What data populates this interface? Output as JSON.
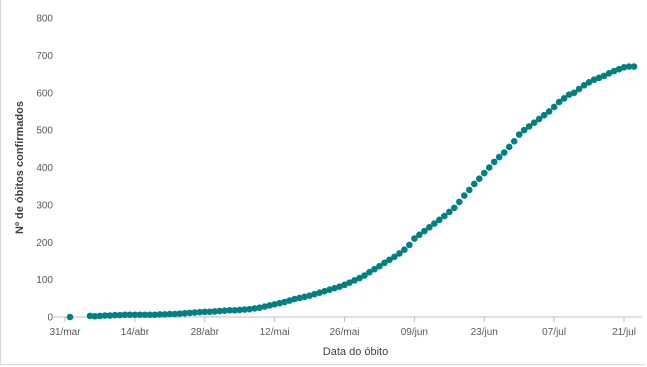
{
  "chart_data": {
    "type": "scatter",
    "title": "",
    "xlabel": "Data do óbito",
    "ylabel": "Nº de óbitos confirmados",
    "x_start": "2020-03-31",
    "x_end": "2020-07-23",
    "xticks": [
      {
        "label": "31/mar",
        "date": "2020-03-31"
      },
      {
        "label": "14/abr",
        "date": "2020-04-14"
      },
      {
        "label": "28/abr",
        "date": "2020-04-28"
      },
      {
        "label": "12/mai",
        "date": "2020-05-12"
      },
      {
        "label": "26/mai",
        "date": "2020-05-26"
      },
      {
        "label": "09/jun",
        "date": "2020-06-09"
      },
      {
        "label": "23/jun",
        "date": "2020-06-23"
      },
      {
        "label": "07/jul",
        "date": "2020-07-07"
      },
      {
        "label": "21/jul",
        "date": "2020-07-21"
      }
    ],
    "yticks": [
      "0",
      "100",
      "200",
      "300",
      "400",
      "500",
      "600",
      "700",
      "800"
    ],
    "ylim": [
      0,
      800
    ],
    "grid": false,
    "marker_color": "#008080",
    "series": [
      {
        "points": [
          [
            "2020-04-01",
            0
          ],
          [
            "2020-04-05",
            3
          ],
          [
            "2020-04-06",
            2
          ],
          [
            "2020-04-07",
            3
          ],
          [
            "2020-04-08",
            4
          ],
          [
            "2020-04-09",
            4
          ],
          [
            "2020-04-10",
            5
          ],
          [
            "2020-04-11",
            5
          ],
          [
            "2020-04-12",
            6
          ],
          [
            "2020-04-13",
            6
          ],
          [
            "2020-04-14",
            6
          ],
          [
            "2020-04-15",
            6
          ],
          [
            "2020-04-16",
            6
          ],
          [
            "2020-04-17",
            6
          ],
          [
            "2020-04-18",
            6
          ],
          [
            "2020-04-19",
            7
          ],
          [
            "2020-04-20",
            7
          ],
          [
            "2020-04-21",
            8
          ],
          [
            "2020-04-22",
            8
          ],
          [
            "2020-04-23",
            9
          ],
          [
            "2020-04-24",
            10
          ],
          [
            "2020-04-25",
            11
          ],
          [
            "2020-04-26",
            12
          ],
          [
            "2020-04-27",
            13
          ],
          [
            "2020-04-28",
            14
          ],
          [
            "2020-04-29",
            14
          ],
          [
            "2020-04-30",
            15
          ],
          [
            "2020-05-01",
            16
          ],
          [
            "2020-05-02",
            17
          ],
          [
            "2020-05-03",
            18
          ],
          [
            "2020-05-04",
            18
          ],
          [
            "2020-05-05",
            19
          ],
          [
            "2020-05-06",
            20
          ],
          [
            "2020-05-07",
            21
          ],
          [
            "2020-05-08",
            23
          ],
          [
            "2020-05-09",
            25
          ],
          [
            "2020-05-10",
            28
          ],
          [
            "2020-05-11",
            31
          ],
          [
            "2020-05-12",
            34
          ],
          [
            "2020-05-13",
            37
          ],
          [
            "2020-05-14",
            40
          ],
          [
            "2020-05-15",
            44
          ],
          [
            "2020-05-16",
            48
          ],
          [
            "2020-05-17",
            51
          ],
          [
            "2020-05-18",
            54
          ],
          [
            "2020-05-19",
            57
          ],
          [
            "2020-05-20",
            61
          ],
          [
            "2020-05-21",
            65
          ],
          [
            "2020-05-22",
            69
          ],
          [
            "2020-05-23",
            73
          ],
          [
            "2020-05-24",
            77
          ],
          [
            "2020-05-25",
            81
          ],
          [
            "2020-05-26",
            86
          ],
          [
            "2020-05-27",
            92
          ],
          [
            "2020-05-28",
            98
          ],
          [
            "2020-05-29",
            104
          ],
          [
            "2020-05-30",
            111
          ],
          [
            "2020-05-31",
            120
          ],
          [
            "2020-06-01",
            128
          ],
          [
            "2020-06-02",
            136
          ],
          [
            "2020-06-03",
            145
          ],
          [
            "2020-06-04",
            153
          ],
          [
            "2020-06-05",
            161
          ],
          [
            "2020-06-06",
            170
          ],
          [
            "2020-06-07",
            180
          ],
          [
            "2020-06-08",
            193
          ],
          [
            "2020-06-09",
            210
          ],
          [
            "2020-06-10",
            220
          ],
          [
            "2020-06-11",
            230
          ],
          [
            "2020-06-12",
            240
          ],
          [
            "2020-06-13",
            250
          ],
          [
            "2020-06-14",
            260
          ],
          [
            "2020-06-15",
            270
          ],
          [
            "2020-06-16",
            281
          ],
          [
            "2020-06-17",
            292
          ],
          [
            "2020-06-18",
            308
          ],
          [
            "2020-06-19",
            325
          ],
          [
            "2020-06-20",
            340
          ],
          [
            "2020-06-21",
            356
          ],
          [
            "2020-06-22",
            370
          ],
          [
            "2020-06-23",
            385
          ],
          [
            "2020-06-24",
            400
          ],
          [
            "2020-06-25",
            415
          ],
          [
            "2020-06-26",
            428
          ],
          [
            "2020-06-27",
            440
          ],
          [
            "2020-06-28",
            455
          ],
          [
            "2020-06-29",
            470
          ],
          [
            "2020-06-30",
            488
          ],
          [
            "2020-07-01",
            500
          ],
          [
            "2020-07-02",
            510
          ],
          [
            "2020-07-03",
            520
          ],
          [
            "2020-07-04",
            530
          ],
          [
            "2020-07-05",
            540
          ],
          [
            "2020-07-06",
            550
          ],
          [
            "2020-07-07",
            562
          ],
          [
            "2020-07-08",
            575
          ],
          [
            "2020-07-09",
            585
          ],
          [
            "2020-07-10",
            595
          ],
          [
            "2020-07-11",
            600
          ],
          [
            "2020-07-12",
            610
          ],
          [
            "2020-07-13",
            620
          ],
          [
            "2020-07-14",
            628
          ],
          [
            "2020-07-15",
            635
          ],
          [
            "2020-07-16",
            640
          ],
          [
            "2020-07-17",
            645
          ],
          [
            "2020-07-18",
            652
          ],
          [
            "2020-07-19",
            658
          ],
          [
            "2020-07-20",
            663
          ],
          [
            "2020-07-21",
            668
          ],
          [
            "2020-07-22",
            670
          ],
          [
            "2020-07-23",
            670
          ]
        ]
      }
    ]
  }
}
